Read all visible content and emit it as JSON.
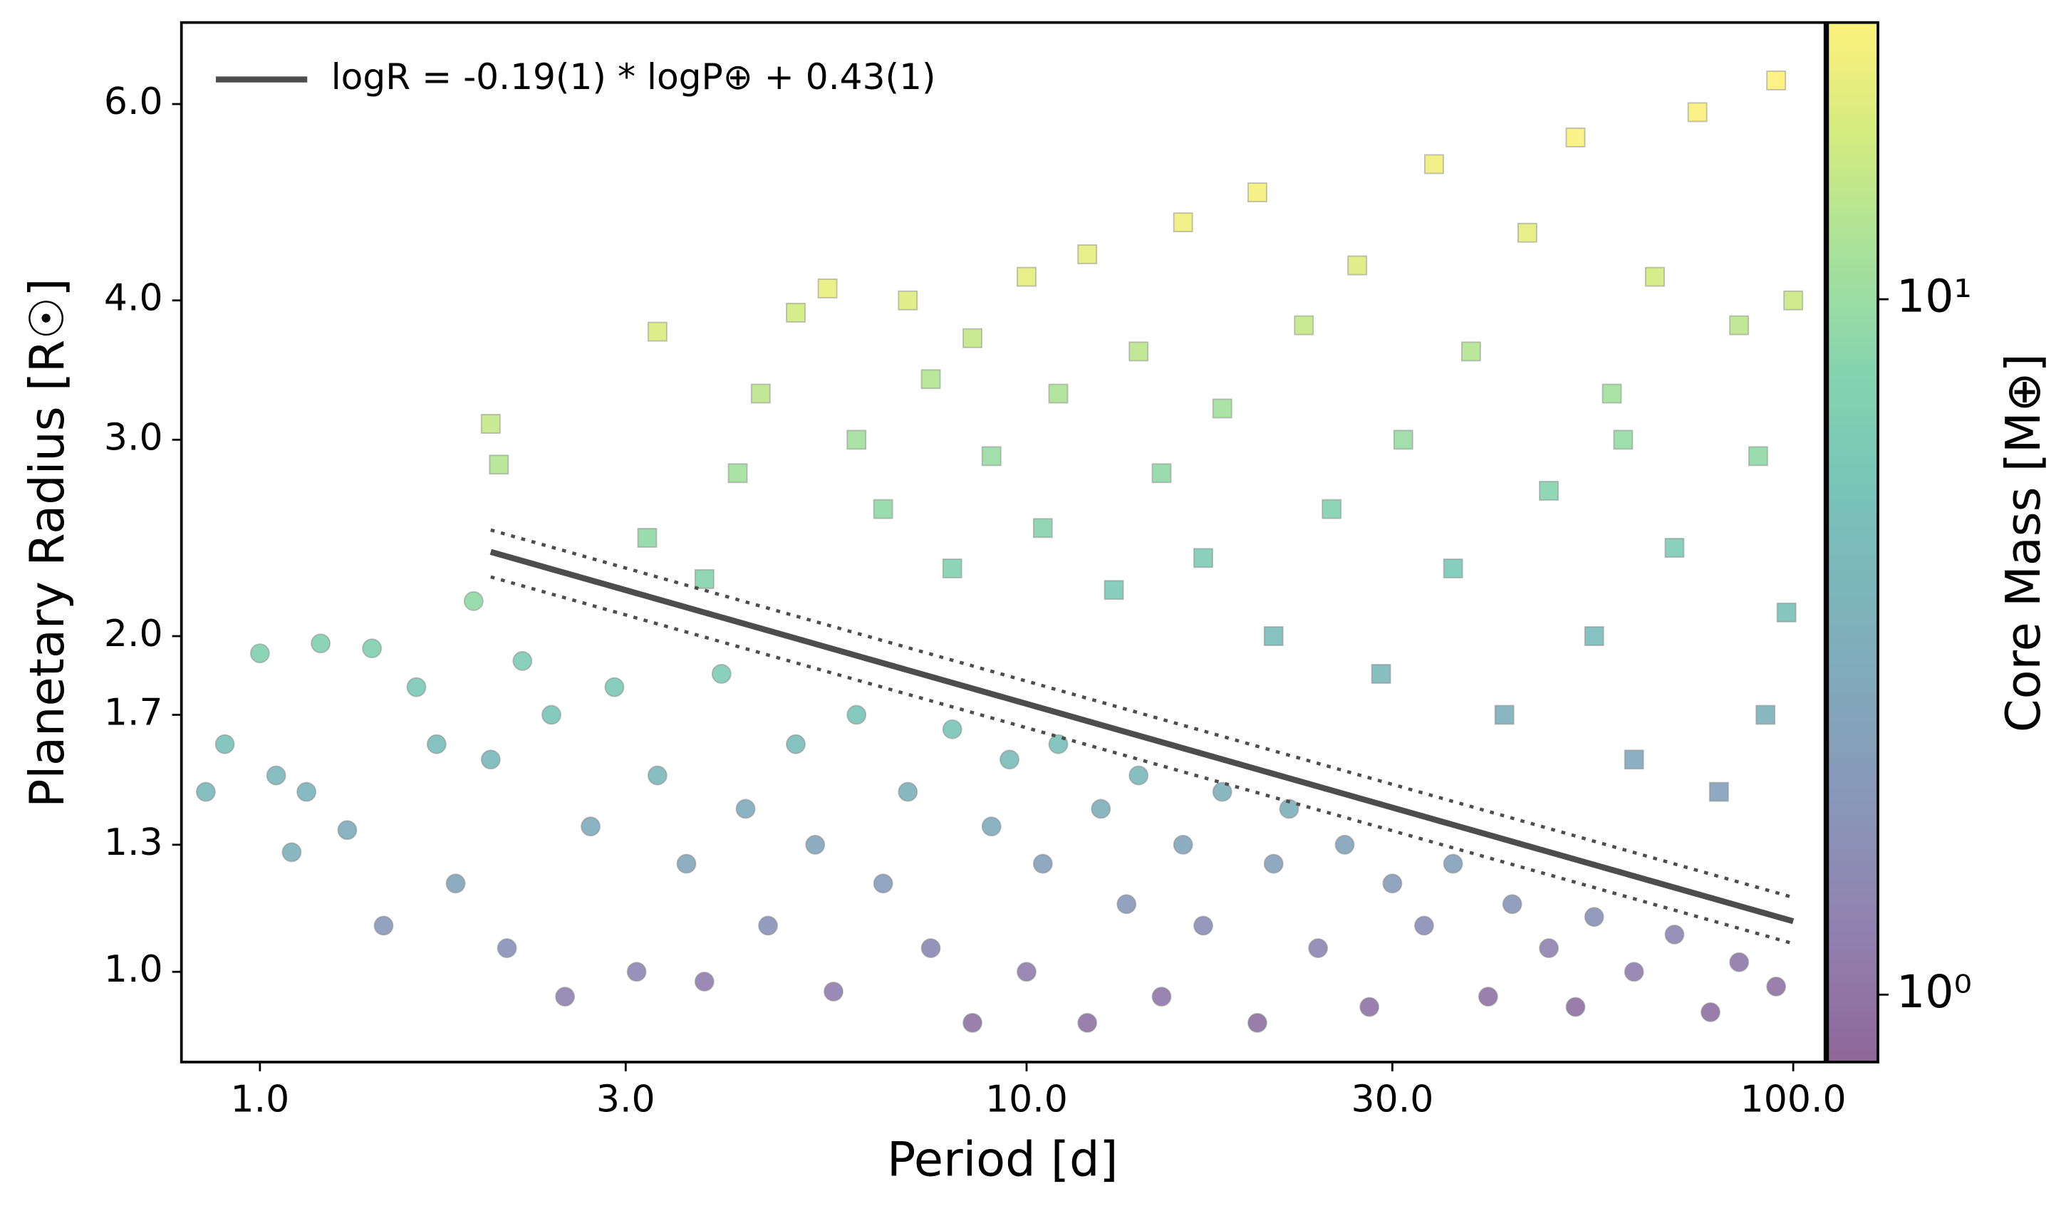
{
  "chart_data": {
    "type": "scatter",
    "xlabel": "Period [d]",
    "ylabel": "Planetary Radius [R☉]",
    "colorbar_label": "Core Mass [M⊕]",
    "xscale": "log",
    "yscale": "log",
    "cscale": "log",
    "colormap": "viridis",
    "xlim": [
      0.79,
      110
    ],
    "ylim": [
      0.83,
      7.1
    ],
    "clim": [
      0.8,
      25
    ],
    "xticks": [
      {
        "value": 1,
        "label": "1.0"
      },
      {
        "value": 3,
        "label": "3.0"
      },
      {
        "value": 10,
        "label": "10.0"
      },
      {
        "value": 30,
        "label": "30.0"
      },
      {
        "value": 100,
        "label": "100.0"
      }
    ],
    "yticks": [
      {
        "value": 1,
        "label": "1.0"
      },
      {
        "value": 1.3,
        "label": "1.3"
      },
      {
        "value": 1.7,
        "label": "1.7"
      },
      {
        "value": 2,
        "label": "2.0"
      },
      {
        "value": 3,
        "label": "3.0"
      },
      {
        "value": 4,
        "label": "4.0"
      },
      {
        "value": 6,
        "label": "6.0"
      }
    ],
    "cticks": [
      {
        "value": 1,
        "label": "10⁰"
      },
      {
        "value": 10,
        "label": "10¹"
      }
    ],
    "legend": "upper left",
    "series": [
      {
        "marker": "circle",
        "x": [
          0.85,
          0.9,
          1.0,
          1.05,
          1.1,
          1.15,
          1.2,
          1.3,
          1.4,
          1.45,
          1.6,
          1.7,
          1.8,
          1.9,
          2.0,
          2.1,
          2.2,
          2.4,
          2.5,
          2.7,
          2.9,
          3.1,
          3.3,
          3.6,
          3.8,
          4.0,
          4.3,
          4.6,
          5.0,
          5.3,
          5.6,
          6.0,
          6.5,
          7.0,
          7.5,
          8.0,
          8.5,
          9.0,
          9.5,
          10,
          10.5,
          11,
          12,
          12.5,
          13.5,
          14,
          15,
          16,
          17,
          18,
          20,
          21,
          22,
          24,
          26,
          28,
          30,
          33,
          36,
          40,
          43,
          48,
          52,
          55,
          62,
          70,
          78,
          85,
          95
        ],
        "values": [
          1.45,
          1.6,
          1.93,
          1.5,
          1.28,
          1.45,
          1.97,
          1.34,
          1.95,
          1.1,
          1.8,
          1.6,
          1.2,
          2.15,
          1.55,
          1.05,
          1.9,
          1.7,
          0.95,
          1.35,
          1.8,
          1.0,
          1.5,
          1.25,
          0.98,
          1.85,
          1.4,
          1.1,
          1.6,
          1.3,
          0.96,
          1.7,
          1.2,
          1.45,
          1.05,
          1.65,
          0.9,
          1.35,
          1.55,
          1.0,
          1.25,
          1.6,
          0.9,
          1.4,
          1.15,
          1.5,
          0.95,
          1.3,
          1.1,
          1.45,
          0.9,
          1.25,
          1.4,
          1.05,
          1.3,
          0.93,
          1.2,
          1.1,
          1.25,
          0.95,
          1.15,
          1.05,
          0.93,
          1.12,
          1.0,
          1.08,
          0.92,
          1.02,
          0.97
        ],
        "color_values": [
          4,
          5,
          7,
          4,
          3.5,
          3.8,
          7,
          3,
          7,
          2,
          6,
          4.5,
          2.5,
          9,
          4,
          1.8,
          6.5,
          5.5,
          1.3,
          3,
          6,
          1.4,
          4,
          2.7,
          1.2,
          6.5,
          3,
          1.8,
          4.5,
          2.6,
          1.2,
          5.5,
          2.2,
          3.5,
          1.5,
          5.5,
          1.0,
          3,
          4.5,
          1.2,
          2.3,
          5,
          1.0,
          3.2,
          2,
          4,
          1.1,
          2.6,
          1.6,
          3.5,
          0.95,
          2.3,
          3.5,
          1.4,
          2.5,
          1.0,
          2.1,
          1.6,
          2.4,
          1.0,
          1.9,
          1.3,
          0.95,
          1.7,
          1.2,
          1.4,
          0.95,
          1.1,
          1.0
        ]
      },
      {
        "marker": "square",
        "x": [
          2.0,
          2.05,
          3.3,
          3.2,
          3.8,
          4.2,
          4.5,
          5.0,
          5.5,
          6.0,
          6.5,
          7.0,
          7.5,
          8.0,
          8.5,
          9.0,
          10,
          10.5,
          11,
          12,
          13,
          14,
          15,
          16,
          17,
          18,
          20,
          21,
          23,
          25,
          27,
          29,
          31,
          34,
          36,
          38,
          42,
          45,
          48,
          52,
          55,
          58,
          62,
          66,
          70,
          75,
          80,
          85,
          90,
          95,
          98,
          100,
          92,
          60
        ],
        "values": [
          3.1,
          2.85,
          3.75,
          2.45,
          2.25,
          2.8,
          3.3,
          3.9,
          4.1,
          3.0,
          2.6,
          4.0,
          3.4,
          2.3,
          3.7,
          2.9,
          4.2,
          2.5,
          3.3,
          4.4,
          2.2,
          3.6,
          2.8,
          4.7,
          2.35,
          3.2,
          5.0,
          2.0,
          3.8,
          2.6,
          4.3,
          1.85,
          3.0,
          5.3,
          2.3,
          3.6,
          1.7,
          4.6,
          2.7,
          5.6,
          2.0,
          3.3,
          1.55,
          4.2,
          2.4,
          5.9,
          1.45,
          3.8,
          2.9,
          6.3,
          2.1,
          4.0,
          1.7,
          3.0
        ],
        "color_values": [
          15,
          13,
          18,
          9,
          8,
          11,
          14,
          17,
          21,
          11,
          9,
          19,
          13,
          7.5,
          15,
          10,
          20,
          8,
          12,
          20,
          6,
          14,
          9,
          22,
          6.5,
          11,
          23,
          4.5,
          15,
          7.5,
          19,
          4,
          10,
          22,
          6,
          13,
          3.2,
          20,
          8,
          24,
          4.5,
          11,
          2.8,
          17,
          6.5,
          24,
          2.4,
          14,
          9,
          25,
          5,
          16,
          3.5,
          9.5
        ]
      },
      {
        "type": "line",
        "name": "logR = -0.19(1) * logP⊕ + 0.43(1)",
        "color": "#4d4d4d",
        "style": "solid",
        "x": [
          2,
          100
        ],
        "values": [
          2.38,
          1.11
        ]
      },
      {
        "type": "line",
        "color": "#4d4d4d",
        "style": "dotted",
        "x": [
          2,
          100
        ],
        "values": [
          2.49,
          1.166
        ]
      },
      {
        "type": "line",
        "color": "#4d4d4d",
        "style": "dotted",
        "x": [
          2,
          100
        ],
        "values": [
          2.26,
          1.06
        ]
      }
    ]
  }
}
